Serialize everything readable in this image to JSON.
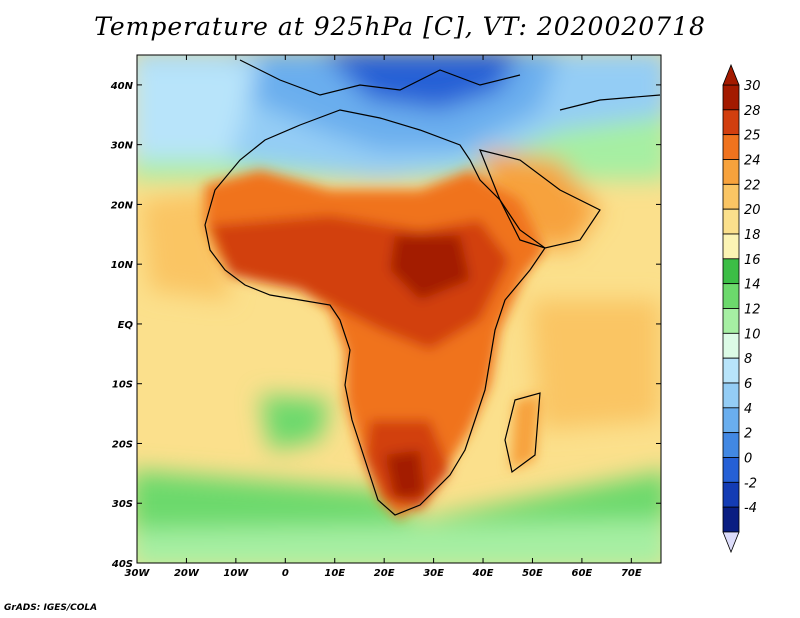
{
  "title": "Temperature at 925hPa [C], VT: 2020020718",
  "credit": "GrADS: IGES/COLA",
  "map": {
    "lon_range": [
      -30,
      76
    ],
    "lat_range": [
      -40,
      45
    ],
    "x_ticks": [
      {
        "value": -30,
        "label": "30W"
      },
      {
        "value": -20,
        "label": "20W"
      },
      {
        "value": -10,
        "label": "10W"
      },
      {
        "value": 0,
        "label": "0"
      },
      {
        "value": 10,
        "label": "10E"
      },
      {
        "value": 20,
        "label": "20E"
      },
      {
        "value": 30,
        "label": "30E"
      },
      {
        "value": 40,
        "label": "40E"
      },
      {
        "value": 50,
        "label": "50E"
      },
      {
        "value": 60,
        "label": "60E"
      },
      {
        "value": 70,
        "label": "70E"
      }
    ],
    "y_ticks": [
      {
        "value": 40,
        "label": "40N"
      },
      {
        "value": 30,
        "label": "30N"
      },
      {
        "value": 20,
        "label": "20N"
      },
      {
        "value": 10,
        "label": "10N"
      },
      {
        "value": 0,
        "label": "EQ"
      },
      {
        "value": -10,
        "label": "10S"
      },
      {
        "value": -20,
        "label": "20S"
      },
      {
        "value": -30,
        "label": "30S"
      },
      {
        "value": -40,
        "label": "40S"
      }
    ]
  },
  "colorbar": {
    "levels": [
      {
        "label": "30",
        "color": "#a31a00"
      },
      {
        "label": "28",
        "color": "#d23f0f"
      },
      {
        "label": "25",
        "color": "#f0731e"
      },
      {
        "label": "24",
        "color": "#f7a23c"
      },
      {
        "label": "22",
        "color": "#fac564"
      },
      {
        "label": "20",
        "color": "#fbe08c"
      },
      {
        "label": "18",
        "color": "#fcf4b4"
      },
      {
        "label": "16",
        "color": "#3cbe46"
      },
      {
        "label": "14",
        "color": "#6cd96c"
      },
      {
        "label": "12",
        "color": "#a6efa3"
      },
      {
        "label": "10",
        "color": "#dcfbe6"
      },
      {
        "label": "8",
        "color": "#b8e4fa"
      },
      {
        "label": "6",
        "color": "#94cdf5"
      },
      {
        "label": "4",
        "color": "#6aaeee"
      },
      {
        "label": "2",
        "color": "#4288e3"
      },
      {
        "label": "0",
        "color": "#2560d6"
      },
      {
        "label": "-2",
        "color": "#143cb4"
      },
      {
        "label": "-4",
        "color": "#0a1e82"
      }
    ],
    "below_color": "#dcdcfa"
  }
}
